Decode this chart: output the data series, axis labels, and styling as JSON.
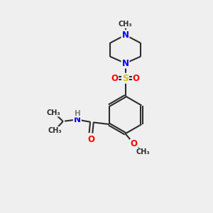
{
  "background_color": "#efefef",
  "bond_color": "#2d2d2d",
  "N_color": "#0000ff",
  "O_color": "#ff0000",
  "S_color": "#cccc00",
  "H_color": "#808080",
  "line_width": 1.5,
  "font_size": 8.5,
  "fig_size": [
    3.0,
    3.0
  ],
  "dpi": 100,
  "xlim": [
    0,
    10
  ],
  "ylim": [
    0,
    10
  ]
}
